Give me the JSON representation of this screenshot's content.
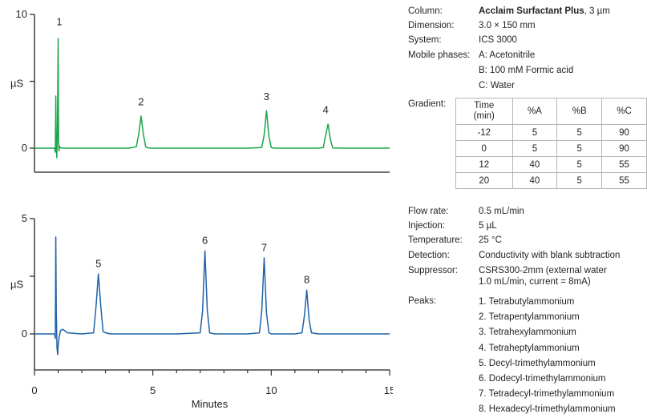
{
  "chart_data": [
    {
      "type": "line",
      "title": "",
      "xlabel": "",
      "ylabel": "µS",
      "xlim": [
        0,
        15
      ],
      "ylim": [
        -0.8,
        10
      ],
      "y_ticks": [
        0,
        10
      ],
      "color": "#1aa64a",
      "series": [
        {
          "x": [
            0,
            0.85,
            0.88,
            0.9,
            0.92,
            0.94,
            0.97,
            1.0,
            1.02,
            1.04,
            1.06,
            1.08,
            1.12,
            1.2,
            1.4,
            2.0,
            3.0,
            4.0,
            4.3,
            4.4,
            4.5,
            4.6,
            4.7,
            4.8,
            5.0,
            6.0,
            7.0,
            8.0,
            9.0,
            9.6,
            9.7,
            9.8,
            9.9,
            10.0,
            10.1,
            11.0,
            12.0,
            12.2,
            12.3,
            12.4,
            12.5,
            12.6,
            13.0,
            14.0,
            15.0
          ],
          "y": [
            0,
            0,
            -0.3,
            3.9,
            0.5,
            -0.7,
            0.8,
            8.2,
            0.4,
            -0.2,
            0.15,
            0.05,
            0.02,
            0,
            0,
            0,
            0,
            0,
            0.1,
            1.0,
            2.4,
            1.0,
            0.1,
            0.02,
            0,
            0,
            0,
            0,
            0,
            0.05,
            1.0,
            2.8,
            0.9,
            0.05,
            0,
            0,
            0,
            0.05,
            1.0,
            1.8,
            0.6,
            0.02,
            0,
            0,
            0
          ]
        }
      ],
      "annotations": [
        {
          "text": "1",
          "x": 1.05,
          "y": 9.2
        },
        {
          "text": "2",
          "x": 4.5,
          "y": 3.2
        },
        {
          "text": "3",
          "x": 9.8,
          "y": 3.6
        },
        {
          "text": "4",
          "x": 12.3,
          "y": 2.6
        }
      ]
    },
    {
      "type": "line",
      "title": "",
      "xlabel": "Minutes",
      "ylabel": "µS",
      "xlim": [
        0,
        15
      ],
      "ylim": [
        -1.0,
        5.6
      ],
      "x_ticks": [
        0,
        5,
        10,
        15
      ],
      "y_ticks": [
        0,
        5
      ],
      "color": "#1f63a8",
      "series": [
        {
          "x": [
            0,
            0.85,
            0.88,
            0.9,
            0.92,
            0.95,
            0.98,
            1.0,
            1.05,
            1.1,
            1.2,
            1.4,
            2.0,
            2.5,
            2.6,
            2.7,
            2.8,
            2.9,
            3.0,
            3.2,
            4.0,
            5.0,
            6.0,
            7.0,
            7.1,
            7.2,
            7.3,
            7.4,
            7.6,
            8.0,
            9.0,
            9.5,
            9.6,
            9.7,
            9.8,
            9.9,
            10.0,
            11.0,
            11.3,
            11.4,
            11.5,
            11.6,
            11.7,
            12.0,
            13.0,
            14.0,
            15.0
          ],
          "y": [
            0,
            0,
            -0.2,
            4.2,
            1.0,
            -0.6,
            -0.9,
            -0.5,
            -0.1,
            0.15,
            0.2,
            0.05,
            0,
            0.05,
            1.2,
            2.6,
            1.2,
            0.1,
            0.05,
            0,
            0,
            0,
            0,
            0.05,
            1.0,
            3.6,
            1.0,
            0.05,
            0,
            0,
            0,
            0.05,
            1.0,
            3.3,
            0.9,
            0.05,
            0,
            0,
            0.05,
            0.8,
            1.9,
            0.6,
            0.05,
            0,
            0,
            0,
            0
          ]
        }
      ],
      "annotations": [
        {
          "text": "5",
          "x": 2.7,
          "y": 2.9
        },
        {
          "text": "6",
          "x": 7.2,
          "y": 3.9
        },
        {
          "text": "7",
          "x": 9.7,
          "y": 3.6
        },
        {
          "text": "8",
          "x": 11.5,
          "y": 2.2
        }
      ]
    }
  ],
  "conditions": {
    "column_label": "Column:",
    "column_name": "Acclaim Surfactant Plus",
    "column_size": ", 3 µm",
    "dimension_label": "Dimension:",
    "dimension_value": "3.0 × 150 mm",
    "system_label": "System:",
    "system_value": "ICS 3000",
    "mobile_label": "Mobile phases:",
    "mobile_a": "A: Acetonitrile",
    "mobile_b": "B: 100 mM Formic acid",
    "mobile_c": "C: Water",
    "gradient_label": "Gradient:",
    "gradient_table": {
      "header_time_1": "Time",
      "header_time_2": "(min)",
      "header_a": "%A",
      "header_b": "%B",
      "header_c": "%C",
      "rows": [
        [
          "-12",
          "5",
          "5",
          "90"
        ],
        [
          "0",
          "5",
          "5",
          "90"
        ],
        [
          "12",
          "40",
          "5",
          "55"
        ],
        [
          "20",
          "40",
          "5",
          "55"
        ]
      ]
    },
    "flow_label": "Flow rate:",
    "flow_value": "0.5  mL/min",
    "injection_label": "Injection:",
    "injection_value": "5 µL",
    "temperature_label": "Temperature:",
    "temperature_value": "25 °C",
    "detection_label": "Detection:",
    "detection_value": "Conductivity with blank subtraction",
    "suppressor_label": "Suppressor:",
    "suppressor_value_1": "CSRS300-2mm (external water",
    "suppressor_value_2": "1.0 mL/min, current = 8mA)",
    "peaks_label": "Peaks:",
    "peaks": [
      "1.  Tetrabutylammonium",
      "2.  Tetrapentylammonium",
      "3.  Tetrahexylammonium",
      "4.  Tetraheptylammonium",
      "5.  Decyl-trimethylammonium",
      "6.  Dodecyl-trimethylammonium",
      "7.  Tetradecyl-trimethylammonium",
      "8.  Hexadecyl-trimethylammonium"
    ]
  }
}
